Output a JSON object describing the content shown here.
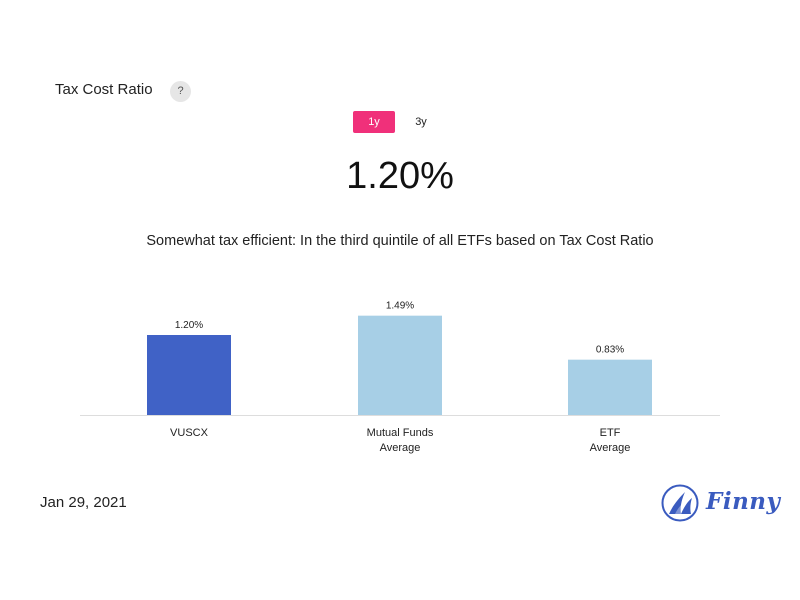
{
  "header": {
    "title": "Tax Cost Ratio",
    "help_label": "?"
  },
  "period_tabs": [
    {
      "label": "1y",
      "active": true
    },
    {
      "label": "3y",
      "active": false
    }
  ],
  "value": "1.20%",
  "description": "Somewhat tax efficient: In the third quintile of all ETFs based on Tax Cost Ratio",
  "chart_data": {
    "type": "bar",
    "categories": [
      [
        "VUSCX"
      ],
      [
        "Mutual Funds",
        "Average"
      ],
      [
        "ETF",
        "Average"
      ]
    ],
    "values": [
      1.2,
      1.49,
      0.83
    ],
    "data_labels": [
      "1.20%",
      "1.49%",
      "0.83%"
    ],
    "colors": [
      "#4062c6",
      "#a7cfe6",
      "#a7cfe6"
    ],
    "ylim": [
      0,
      1.8
    ],
    "grid": false
  },
  "footer": {
    "date": "Jan 29, 2021",
    "brand": "Finny",
    "brand_color": "#3a5bbf",
    "brand_icon": "sailboat-icon"
  },
  "colors": {
    "accent": "#f0307a"
  }
}
